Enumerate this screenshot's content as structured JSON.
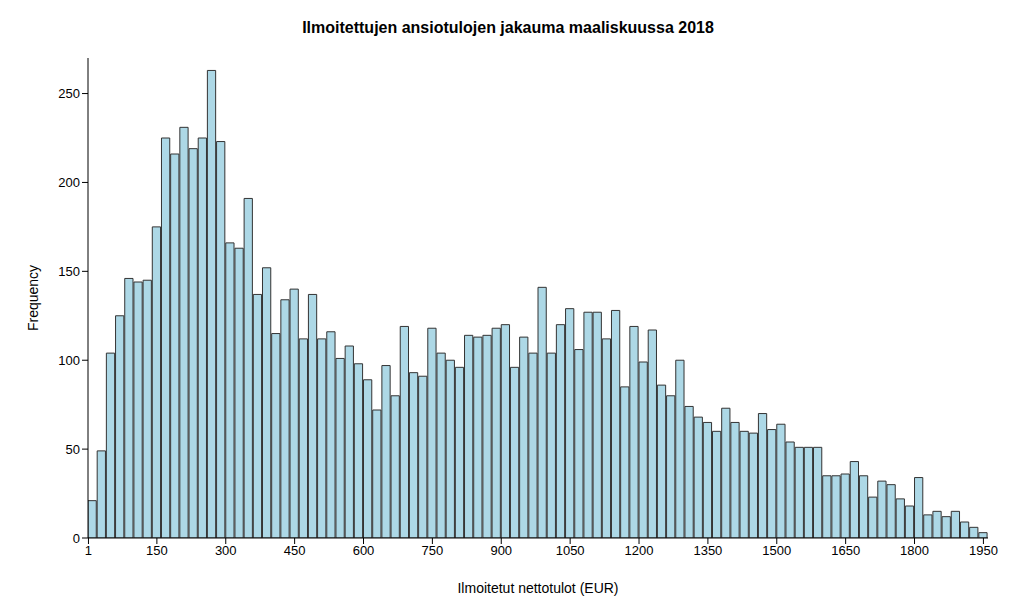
{
  "chart_data": {
    "type": "histogram",
    "title": "Ilmoitettujen ansiotulojen jakauma maaliskuussa 2018",
    "x_label": "Ilmoitetut nettotulot (EUR)",
    "y_label": "Frequency",
    "bins": [
      0,
      20,
      40,
      60,
      80,
      100,
      120,
      140,
      160,
      180,
      200,
      220,
      240,
      260,
      280,
      300,
      320,
      340,
      360,
      380,
      400,
      420,
      440,
      460,
      480,
      500,
      520,
      540,
      560,
      580,
      600,
      620,
      640,
      660,
      680,
      700,
      720,
      740,
      760,
      780,
      800,
      820,
      840,
      860,
      880,
      900,
      920,
      940,
      960,
      980,
      1000,
      1020,
      1040,
      1060,
      1080,
      1100,
      1120,
      1140,
      1160,
      1180,
      1200,
      1220,
      1240,
      1260,
      1280,
      1300,
      1320,
      1340,
      1360,
      1380,
      1400,
      1420,
      1440,
      1460,
      1480,
      1500,
      1520,
      1540,
      1560,
      1580,
      1600,
      1620,
      1640,
      1660,
      1680,
      1700,
      1720,
      1740,
      1760,
      1780,
      1800,
      1820,
      1840,
      1860,
      1880,
      1900,
      1920,
      1940,
      1960
    ],
    "values": [
      21,
      49,
      104,
      125,
      146,
      144,
      145,
      175,
      225,
      216,
      231,
      219,
      225,
      263,
      223,
      166,
      163,
      191,
      137,
      152,
      115,
      134,
      140,
      112,
      137,
      112,
      116,
      101,
      108,
      98,
      89,
      72,
      97,
      80,
      119,
      93,
      91,
      118,
      104,
      100,
      96,
      114,
      113,
      114,
      118,
      120,
      96,
      113,
      104,
      141,
      104,
      120,
      129,
      106,
      127,
      127,
      112,
      128,
      85,
      119,
      99,
      117,
      86,
      80,
      100,
      74,
      68,
      65,
      60,
      73,
      65,
      60,
      59,
      70,
      61,
      64,
      54,
      51,
      51,
      51,
      35,
      35,
      36,
      43,
      35,
      23,
      32,
      30,
      22,
      18,
      34,
      13,
      15,
      12,
      15,
      9,
      6,
      3
    ],
    "color": "#add8e6",
    "xlim": [
      0,
      1960
    ],
    "xticks": [
      1,
      150,
      300,
      450,
      600,
      750,
      900,
      1050,
      1200,
      1350,
      1500,
      1650,
      1800,
      1950
    ],
    "ylim": [
      0,
      270
    ],
    "yticks": [
      0,
      50,
      100,
      150,
      200,
      250
    ],
    "grid": false
  }
}
